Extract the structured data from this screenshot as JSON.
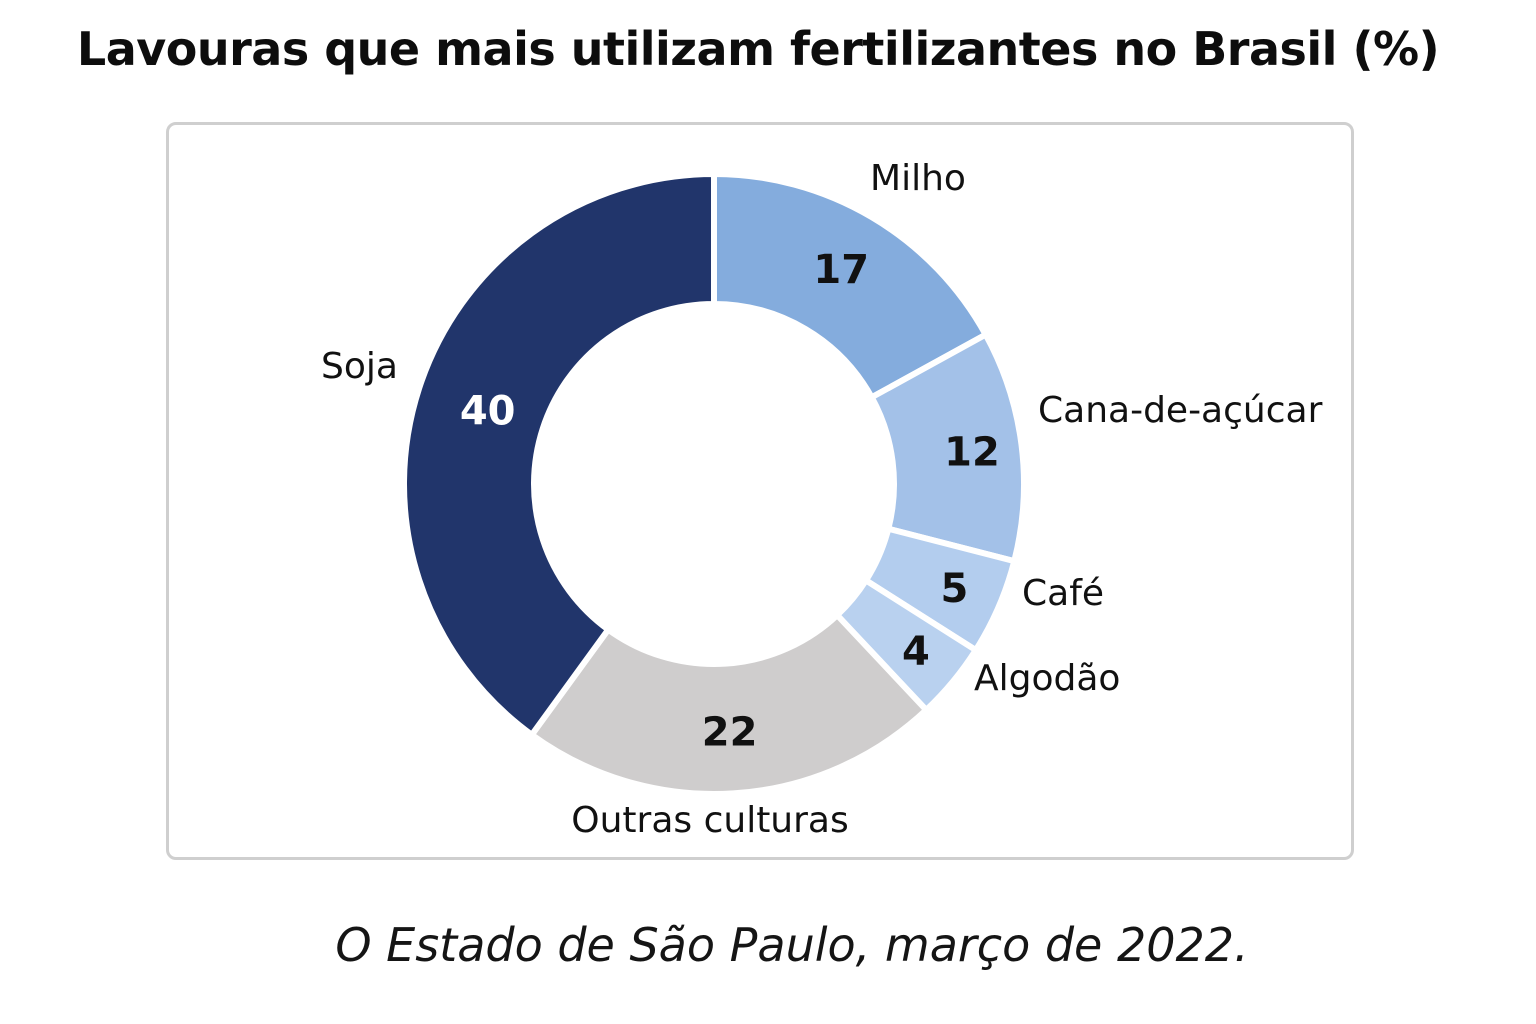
{
  "title": "Lavouras que mais utilizam fertilizantes no Brasil (%)",
  "source": "O Estado de São Paulo, março de 2022.",
  "chart_data": {
    "type": "pie",
    "variant": "donut",
    "title": "Lavouras que mais utilizam fertilizantes no Brasil (%)",
    "start_angle": "12 o'clock",
    "direction": "clockwise",
    "slices": [
      {
        "label": "Milho",
        "value": 17,
        "color": "#84acdd",
        "value_color": "#111111"
      },
      {
        "label": "Cana-de-açúcar",
        "value": 12,
        "color": "#a3c1e8",
        "value_color": "#111111"
      },
      {
        "label": "Café",
        "value": 5,
        "color": "#b3cdee",
        "value_color": "#111111"
      },
      {
        "label": "Algodão",
        "value": 4,
        "color": "#b9d1ef",
        "value_color": "#111111"
      },
      {
        "label": "Outras culturas",
        "value": 22,
        "color": "#cfcdcd",
        "value_color": "#111111"
      },
      {
        "label": "Soja",
        "value": 40,
        "color": "#21356b",
        "value_color": "#ffffff"
      }
    ]
  }
}
